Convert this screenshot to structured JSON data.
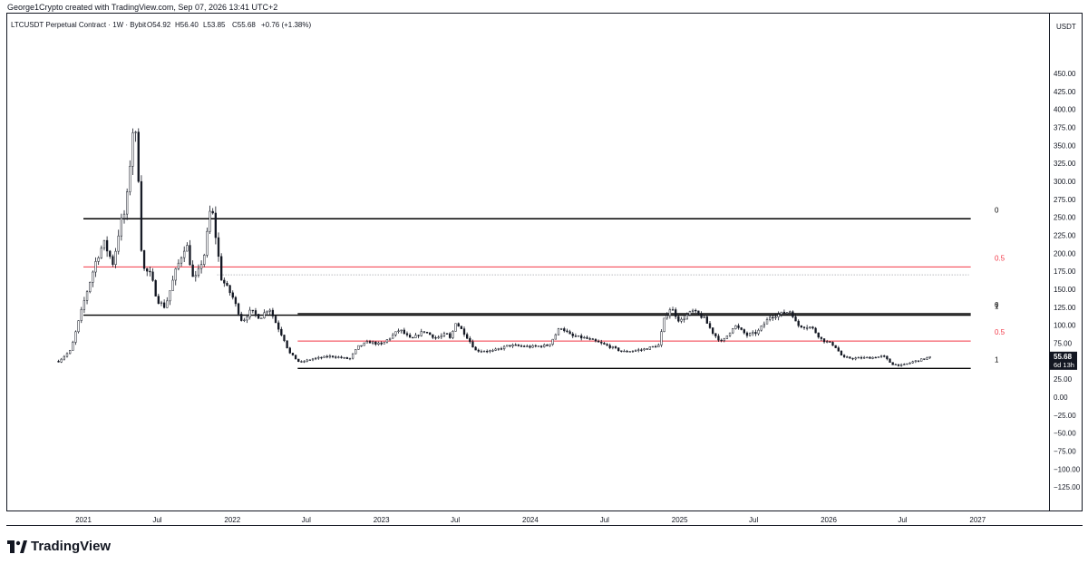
{
  "header": {
    "credit": "George1Crypto created with TradingView.com, Sep 07, 2026 13:41 UTC+2"
  },
  "footer": {
    "brand": "TradingView"
  },
  "colors": {
    "candle": "#131722",
    "fib_mid": "#f23645",
    "level_line": "#000000",
    "dotted": "#9598a1",
    "grid": "#b2b5be",
    "price_tag_bg": "#131722",
    "price_tag_text": "#ffffff"
  },
  "chart_data": {
    "type": "candlestick",
    "title": "LTCUSDT Perpetual Contract · 1W · Bybit",
    "ohlc": {
      "open": "O54.92",
      "high": "H56.40",
      "low": "L53.85",
      "close": "C55.68",
      "change": "+0.76 (+1.38%)"
    },
    "currency": "USDT",
    "last_price": "55.68",
    "countdown": "6d 13h",
    "y_range": [
      -150,
      470
    ],
    "y_ticks": [
      "450.00",
      "425.00",
      "400.00",
      "375.00",
      "350.00",
      "325.00",
      "300.00",
      "275.00",
      "250.00",
      "225.00",
      "200.00",
      "175.00",
      "150.00",
      "125.00",
      "100.00",
      "75.00",
      "50.00",
      "25.00",
      "0.00",
      "−25.00",
      "−50.00",
      "−75.00",
      "−100.00",
      "−125.00"
    ],
    "y_tick_values": [
      450,
      425,
      400,
      375,
      350,
      325,
      300,
      275,
      250,
      225,
      200,
      175,
      150,
      125,
      100,
      75,
      50,
      25,
      0,
      -25,
      -50,
      -75,
      -100,
      -125
    ],
    "x_range": [
      "2020-11-01",
      "2027-01-20"
    ],
    "x_ticks": [
      {
        "label": "2021",
        "date": "2021-01-01"
      },
      {
        "label": "Jul",
        "date": "2021-07-01"
      },
      {
        "label": "2022",
        "date": "2022-01-01"
      },
      {
        "label": "Jul",
        "date": "2022-07-01"
      },
      {
        "label": "2023",
        "date": "2023-01-01"
      },
      {
        "label": "Jul",
        "date": "2023-07-01"
      },
      {
        "label": "2024",
        "date": "2024-01-01"
      },
      {
        "label": "Jul",
        "date": "2024-07-01"
      },
      {
        "label": "2025",
        "date": "2025-01-01"
      },
      {
        "label": "Jul",
        "date": "2025-07-01"
      },
      {
        "label": "2026",
        "date": "2026-01-01"
      },
      {
        "label": "Jul",
        "date": "2026-07-01"
      },
      {
        "label": "2027",
        "date": "2027-01-01"
      }
    ],
    "fib_sets": [
      {
        "name": "upper",
        "start": "2021-01-01",
        "end": "2026-12-15",
        "levels": [
          {
            "label": "0",
            "price": 248
          },
          {
            "label": "0.5",
            "price": 181
          },
          {
            "label": "1",
            "price": 114
          }
        ]
      },
      {
        "name": "lower",
        "start": "2022-06-10",
        "end": "2026-12-15",
        "levels": [
          {
            "label": "0",
            "price": 116
          },
          {
            "label": "0.5",
            "price": 78
          },
          {
            "label": "1",
            "price": 40
          }
        ]
      }
    ],
    "dotted_level": {
      "price": 170,
      "start": "2021-11-25",
      "end": "2026-12-10"
    },
    "price_path": [
      [
        "2020-11-01",
        50
      ],
      [
        "2020-12-01",
        65
      ],
      [
        "2021-01-01",
        130
      ],
      [
        "2021-02-01",
        190
      ],
      [
        "2021-02-20",
        215
      ],
      [
        "2021-03-15",
        185
      ],
      [
        "2021-04-01",
        240
      ],
      [
        "2021-04-15",
        260
      ],
      [
        "2021-05-05",
        390
      ],
      [
        "2021-05-15",
        320
      ],
      [
        "2021-05-25",
        180
      ],
      [
        "2021-06-15",
        170
      ],
      [
        "2021-07-01",
        135
      ],
      [
        "2021-07-20",
        125
      ],
      [
        "2021-08-15",
        175
      ],
      [
        "2021-09-10",
        215
      ],
      [
        "2021-09-28",
        160
      ],
      [
        "2021-10-10",
        175
      ],
      [
        "2021-10-25",
        200
      ],
      [
        "2021-11-10",
        270
      ],
      [
        "2021-12-05",
        165
      ],
      [
        "2022-01-01",
        140
      ],
      [
        "2022-01-25",
        105
      ],
      [
        "2022-02-15",
        120
      ],
      [
        "2022-03-10",
        110
      ],
      [
        "2022-04-01",
        125
      ],
      [
        "2022-04-20",
        100
      ],
      [
        "2022-05-08",
        80
      ],
      [
        "2022-05-20",
        62
      ],
      [
        "2022-06-15",
        48
      ],
      [
        "2022-07-15",
        53
      ],
      [
        "2022-09-01",
        57
      ],
      [
        "2022-10-15",
        53
      ],
      [
        "2022-11-05",
        70
      ],
      [
        "2022-12-01",
        77
      ],
      [
        "2023-01-01",
        73
      ],
      [
        "2023-02-15",
        94
      ],
      [
        "2023-03-15",
        80
      ],
      [
        "2023-04-15",
        92
      ],
      [
        "2023-05-15",
        82
      ],
      [
        "2023-06-10",
        88
      ],
      [
        "2023-06-20",
        80
      ],
      [
        "2023-07-01",
        105
      ],
      [
        "2023-07-25",
        88
      ],
      [
        "2023-08-20",
        65
      ],
      [
        "2023-10-01",
        64
      ],
      [
        "2023-11-10",
        72
      ],
      [
        "2024-01-01",
        70
      ],
      [
        "2024-02-15",
        72
      ],
      [
        "2024-03-15",
        98
      ],
      [
        "2024-04-10",
        85
      ],
      [
        "2024-05-15",
        82
      ],
      [
        "2024-06-15",
        76
      ],
      [
        "2024-07-15",
        70
      ],
      [
        "2024-08-15",
        63
      ],
      [
        "2024-10-01",
        66
      ],
      [
        "2024-11-10",
        72
      ],
      [
        "2024-11-25",
        110
      ],
      [
        "2024-12-10",
        125
      ],
      [
        "2025-01-01",
        105
      ],
      [
        "2025-02-01",
        120
      ],
      [
        "2025-03-01",
        110
      ],
      [
        "2025-03-25",
        88
      ],
      [
        "2025-04-15",
        76
      ],
      [
        "2025-05-15",
        100
      ],
      [
        "2025-06-15",
        86
      ],
      [
        "2025-07-10",
        90
      ],
      [
        "2025-08-10",
        112
      ],
      [
        "2025-09-01",
        115
      ],
      [
        "2025-10-01",
        120
      ],
      [
        "2025-10-15",
        100
      ],
      [
        "2025-11-20",
        97
      ],
      [
        "2025-12-15",
        80
      ],
      [
        "2026-01-15",
        72
      ],
      [
        "2026-02-05",
        55
      ],
      [
        "2026-03-01",
        54
      ],
      [
        "2026-04-15",
        55
      ],
      [
        "2026-05-15",
        57
      ],
      [
        "2026-06-05",
        46
      ],
      [
        "2026-07-01",
        44
      ],
      [
        "2026-07-25",
        49
      ],
      [
        "2026-08-15",
        52
      ],
      [
        "2026-09-07",
        55.68
      ]
    ]
  }
}
